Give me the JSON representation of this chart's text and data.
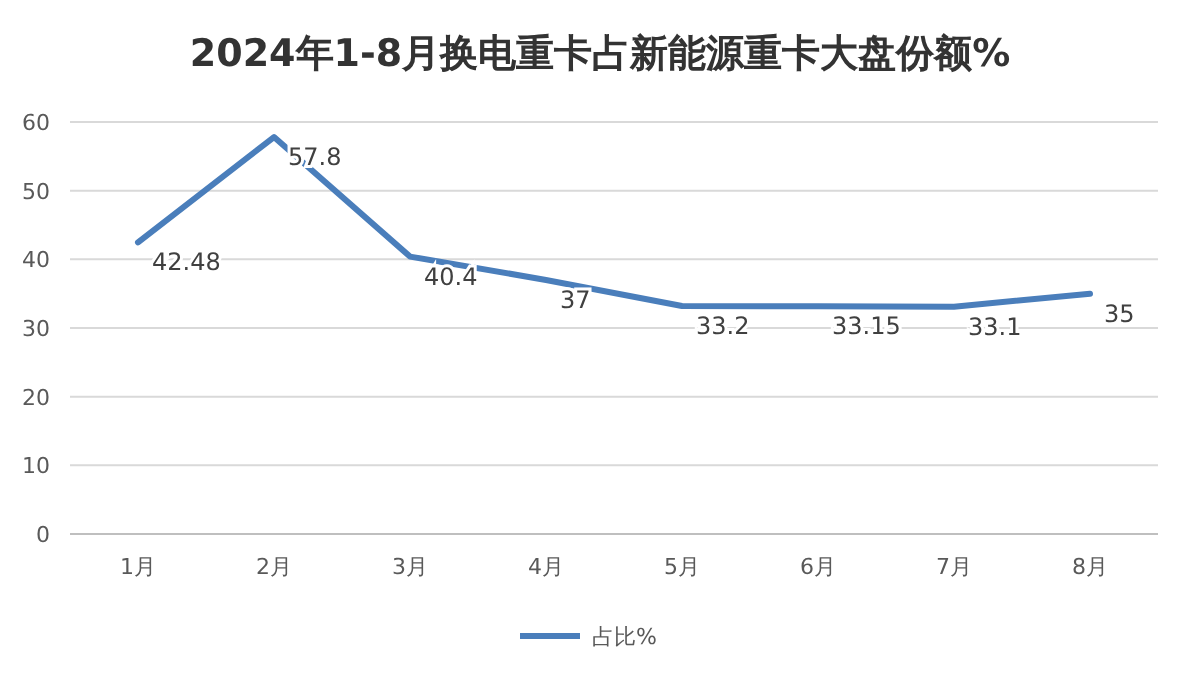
{
  "chart_data": {
    "type": "line",
    "title": "2024年1-8月换电重卡占新能源重卡大盘份额%",
    "categories": [
      "1月",
      "2月",
      "3月",
      "4月",
      "5月",
      "6月",
      "7月",
      "8月"
    ],
    "series": [
      {
        "name": "占比%",
        "color": "#4a7ebb",
        "values": [
          42.48,
          57.8,
          40.4,
          37,
          33.2,
          33.15,
          33.1,
          35
        ]
      }
    ],
    "ylim": [
      0,
      60
    ],
    "yticks": [
      0,
      10,
      20,
      30,
      40,
      50,
      60
    ],
    "grid": "y",
    "legend": "bottom",
    "data_labels": true
  }
}
